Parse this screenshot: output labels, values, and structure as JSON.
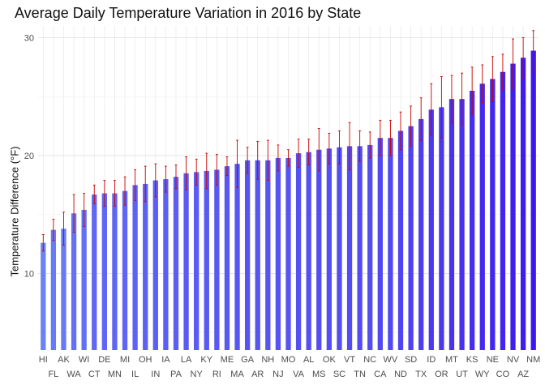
{
  "chart_data": {
    "type": "bar",
    "title": "Average Daily Temperature Variation in 2016 by State",
    "xlabel": "",
    "ylabel": "Temperature Difference (°F)",
    "ylim": [
      3.5,
      31
    ],
    "yticks": [
      10,
      20,
      30
    ],
    "grid": true,
    "legend": "none",
    "bar_color_low": "#6a82f5",
    "bar_color_high": "#3d17ee",
    "errorbar_color": "#cc0000",
    "categories": [
      "HI",
      "FL",
      "AK",
      "WA",
      "WI",
      "CT",
      "DE",
      "MN",
      "MI",
      "IL",
      "OH",
      "IN",
      "IA",
      "PA",
      "LA",
      "NY",
      "KY",
      "RI",
      "ME",
      "MA",
      "GA",
      "AR",
      "NH",
      "NJ",
      "MO",
      "VA",
      "AL",
      "MS",
      "OK",
      "SC",
      "VT",
      "TN",
      "NC",
      "CA",
      "WV",
      "ND",
      "SD",
      "TX",
      "ID",
      "OR",
      "MT",
      "UT",
      "KS",
      "WY",
      "NE",
      "CO",
      "NV",
      "AZ",
      "NM"
    ],
    "values": [
      12.6,
      13.7,
      13.8,
      15.1,
      15.4,
      16.7,
      16.8,
      16.8,
      17.0,
      17.5,
      17.6,
      17.9,
      18.0,
      18.2,
      18.5,
      18.6,
      18.7,
      18.8,
      19.1,
      19.3,
      19.6,
      19.6,
      19.6,
      19.8,
      19.8,
      20.2,
      20.3,
      20.5,
      20.6,
      20.7,
      20.8,
      20.8,
      20.9,
      21.5,
      21.5,
      22.1,
      22.5,
      23.1,
      23.9,
      24.1,
      24.8,
      24.8,
      25.5,
      26.1,
      26.5,
      27.1,
      27.8,
      28.3,
      28.9
    ],
    "error": [
      0.7,
      0.9,
      1.4,
      1.6,
      1.4,
      0.8,
      1.1,
      1.1,
      1.2,
      1.3,
      1.5,
      1.4,
      1.1,
      1.0,
      1.4,
      1.1,
      1.5,
      1.3,
      0.8,
      2.0,
      1.1,
      1.6,
      1.7,
      1.1,
      0.7,
      1.2,
      1.1,
      1.8,
      1.3,
      1.4,
      2.0,
      1.3,
      1.1,
      1.5,
      1.5,
      1.6,
      1.7,
      1.8,
      2.2,
      2.6,
      2.0,
      2.2,
      2.0,
      1.6,
      1.9,
      1.5,
      2.1,
      1.7,
      1.7
    ]
  }
}
